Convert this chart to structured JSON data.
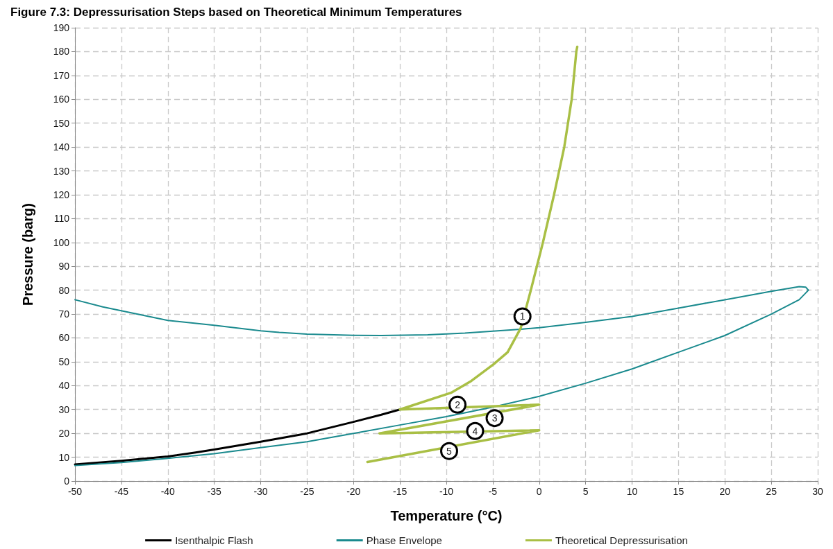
{
  "chart_data": {
    "type": "line",
    "title": "Figure 7.3: Depressurisation Steps based on Theoretical Minimum Temperatures",
    "xlabel": "Temperature (°C)",
    "ylabel": "Pressure (barg)",
    "xlim": [
      -50,
      30
    ],
    "xticks": [
      -50,
      -45,
      -40,
      -35,
      -30,
      -25,
      -20,
      -15,
      -10,
      -5,
      0,
      5,
      10,
      15,
      20,
      25,
      30
    ],
    "ylim": [
      0,
      190
    ],
    "yticks": [
      0,
      10,
      20,
      30,
      40,
      50,
      60,
      70,
      80,
      90,
      100,
      110,
      120,
      130,
      140,
      150,
      160,
      170,
      180,
      190
    ],
    "grid": true,
    "legend": "bottom",
    "marker": "none",
    "line_style": "solid",
    "series": [
      {
        "name": "Isenthalpic Flash",
        "color": "#000000",
        "x": [
          -50,
          -45,
          -40,
          -37,
          -35,
          -30,
          -25,
          -20,
          -17,
          -15
        ],
        "values": [
          7,
          8.5,
          10.3,
          12,
          13.2,
          16.5,
          20,
          24.8,
          27.8,
          30
        ]
      },
      {
        "name": "Phase Envelope",
        "color": "#1a8a8e",
        "x": [
          -50,
          -47,
          -40,
          -35,
          -30,
          -28,
          -25,
          -20,
          -17,
          -12,
          -8,
          -5,
          -2,
          0,
          5,
          10,
          15,
          20,
          25,
          28,
          28.7,
          29,
          28,
          25,
          20,
          15,
          10,
          5,
          0,
          -5,
          -10,
          -15,
          -20,
          -25,
          -30,
          -35,
          -40,
          -45,
          -50
        ],
        "values": [
          76,
          73,
          67.3,
          65.3,
          63,
          62.3,
          61.6,
          61.1,
          61,
          61.3,
          62,
          62.8,
          63.6,
          64.3,
          66.5,
          69,
          72.5,
          76,
          79.5,
          81.5,
          81.3,
          80,
          76,
          70,
          61,
          54,
          47,
          41,
          35.5,
          31,
          27,
          23.5,
          20,
          16.5,
          14,
          11.5,
          9.5,
          7.8,
          6.5
        ]
      },
      {
        "name": "Theoretical Depressurisation",
        "color": "#a9bf45",
        "x": [
          4.1,
          4,
          3.5,
          2.7,
          1.6,
          0.4,
          -0.9,
          -2,
          -3.4,
          -4.9,
          -7.3,
          -9.5,
          -15,
          0,
          -17.2,
          0,
          -18.5
        ],
        "values": [
          182,
          180,
          160,
          140,
          120,
          100,
          80,
          64,
          54,
          49,
          42,
          37,
          30,
          32,
          20,
          21.3,
          8
        ]
      }
    ],
    "annotations": [
      {
        "text": "1",
        "x": -1.8,
        "y": 69
      },
      {
        "text": "2",
        "x": -8.8,
        "y": 32
      },
      {
        "text": "3",
        "x": -4.8,
        "y": 26.4
      },
      {
        "text": "4",
        "x": -6.9,
        "y": 21
      },
      {
        "text": "5",
        "x": -9.7,
        "y": 12.6
      }
    ]
  }
}
